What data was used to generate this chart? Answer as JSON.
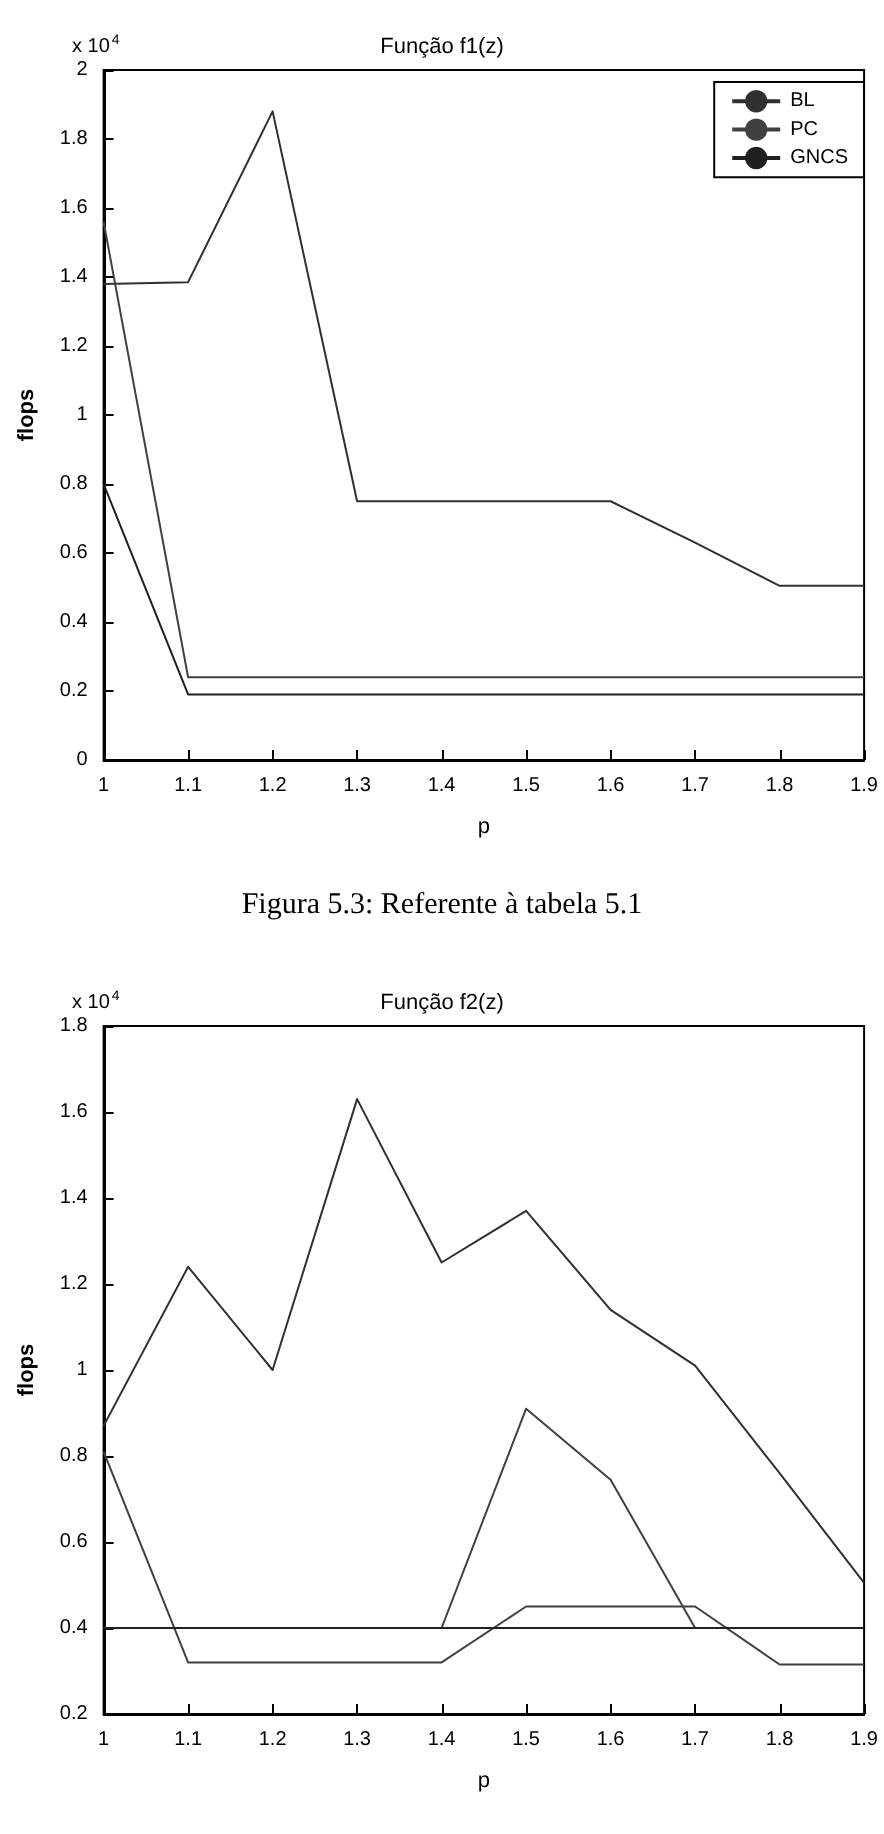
{
  "chart_data": [
    {
      "type": "line",
      "title": "Função f1(z)",
      "xlabel": "p",
      "ylabel": "flops",
      "x": [
        1,
        1.1,
        1.2,
        1.3,
        1.4,
        1.5,
        1.6,
        1.7,
        1.8,
        1.9
      ],
      "series": [
        {
          "name": "BL",
          "color": "#303030",
          "values": [
            1.38,
            1.385,
            1.88,
            0.75,
            0.75,
            0.75,
            0.75,
            0.63,
            0.505,
            0.505
          ]
        },
        {
          "name": "PC",
          "color": "#404040",
          "values": [
            1.56,
            0.24,
            0.24,
            0.24,
            0.24,
            0.24,
            0.24,
            0.24,
            0.24,
            0.24
          ]
        },
        {
          "name": "GNCS",
          "color": "#202020",
          "values": [
            0.8,
            0.19,
            0.19,
            0.19,
            0.19,
            0.19,
            0.19,
            0.19,
            0.19,
            0.19
          ]
        }
      ],
      "xlim": [
        1,
        1.9
      ],
      "xticks": [
        1,
        1.1,
        1.2,
        1.3,
        1.4,
        1.5,
        1.6,
        1.7,
        1.8,
        1.9
      ],
      "ylim": [
        0,
        2
      ],
      "yticks": [
        0,
        0.2,
        0.4,
        0.6,
        0.8,
        1,
        1.2,
        1.4,
        1.6,
        1.8,
        2
      ],
      "annotations": [
        "x 10$^{4}$",
        "Figura 5.3: Referente à tabela 5.1"
      ],
      "grid": false,
      "legend": "top right",
      "marker": "none",
      "line_style": "solid"
    },
    {
      "type": "line",
      "title": "Função f2(z)",
      "xlabel": "p",
      "ylabel": "flops",
      "x": [
        1,
        1.1,
        1.2,
        1.3,
        1.4,
        1.5,
        1.6,
        1.7,
        1.8,
        1.9
      ],
      "series": [
        {
          "color": "#303030",
          "values": [
            0.87,
            1.24,
            1.0,
            1.63,
            1.25,
            1.37,
            1.14,
            1.01,
            0.76,
            0.505
          ]
        },
        {
          "color": "#404040",
          "values": [
            0.81,
            0.32,
            0.32,
            0.32,
            0.32,
            0.45,
            0.45,
            0.45,
            0.315,
            0.315
          ]
        },
        {
          "color": "#404040",
          "values": [
            0.4,
            0.4,
            0.4,
            0.4,
            0.4,
            0.91,
            0.745,
            0.4,
            0.4,
            0.4
          ]
        },
        {
          "color": "#202020",
          "values": [
            0.4,
            0.4,
            0.4,
            0.4,
            0.4,
            0.4,
            0.4,
            0.4,
            0.4,
            0.4
          ]
        }
      ],
      "xlim": [
        1,
        1.9
      ],
      "xticks": [
        1,
        1.1,
        1.2,
        1.3,
        1.4,
        1.5,
        1.6,
        1.7,
        1.8,
        1.9
      ],
      "ylim": [
        0.2,
        1.8
      ],
      "yticks": [
        0.2,
        0.4,
        0.6,
        0.8,
        1,
        1.2,
        1.4,
        1.6,
        1.8
      ],
      "annotations": [
        "x 10$^{4}$"
      ],
      "grid": false,
      "legend": false,
      "marker": "none",
      "line_style": "solid"
    }
  ]
}
